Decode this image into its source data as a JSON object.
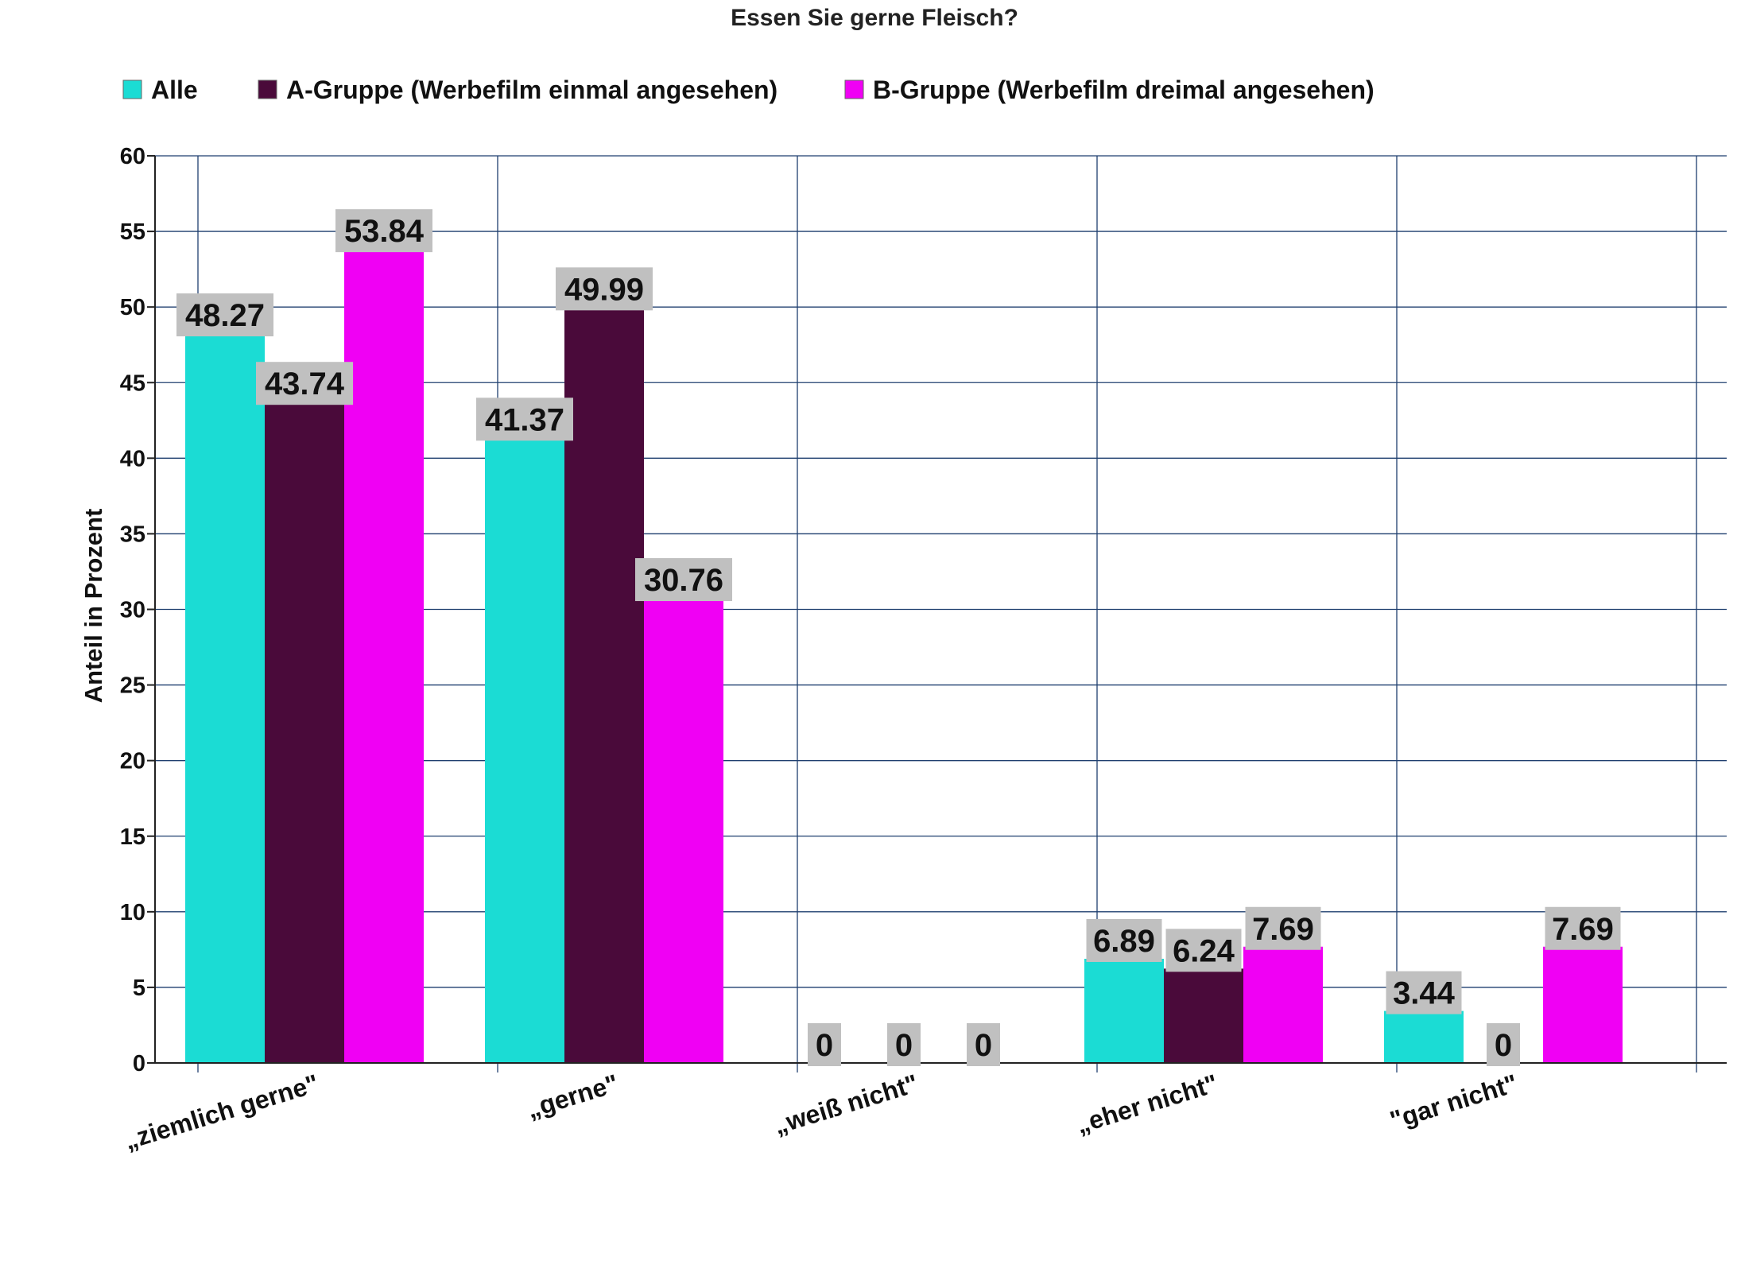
{
  "chart_data": {
    "type": "bar",
    "title": "Essen Sie gerne Fleisch?",
    "xlabel": "",
    "ylabel": "Anteil in Prozent",
    "ylim": [
      0,
      60
    ],
    "yticks": [
      "0",
      "5",
      "10",
      "15",
      "20",
      "25",
      "30",
      "35",
      "40",
      "45",
      "50",
      "55",
      "60"
    ],
    "grid": true,
    "legend_position": "top",
    "categories": [
      "„ziemlich gerne\"",
      "„gerne\"",
      "„weiß nicht\"",
      "„eher nicht\"",
      "\"gar nicht\""
    ],
    "series": [
      {
        "name": "Alle",
        "color": "#1bdcd4",
        "values": [
          48.27,
          41.37,
          0,
          6.89,
          3.44
        ],
        "labels": [
          "48.27",
          "41.37",
          "0",
          "6.89",
          "3.44"
        ]
      },
      {
        "name": "A-Gruppe (Werbefilm einmal angesehen)",
        "color": "#4a0a3a",
        "values": [
          43.74,
          49.99,
          0,
          6.24,
          0
        ],
        "labels": [
          "43.74",
          "49.99",
          "0",
          "6.24",
          "0"
        ]
      },
      {
        "name": "B-Gruppe (Werbefilm dreimal angesehen)",
        "color": "#f000f4",
        "values": [
          53.84,
          30.76,
          0,
          7.69,
          7.69
        ],
        "labels": [
          "53.84",
          "30.76",
          "0",
          "7.69",
          "7.69"
        ]
      }
    ]
  }
}
